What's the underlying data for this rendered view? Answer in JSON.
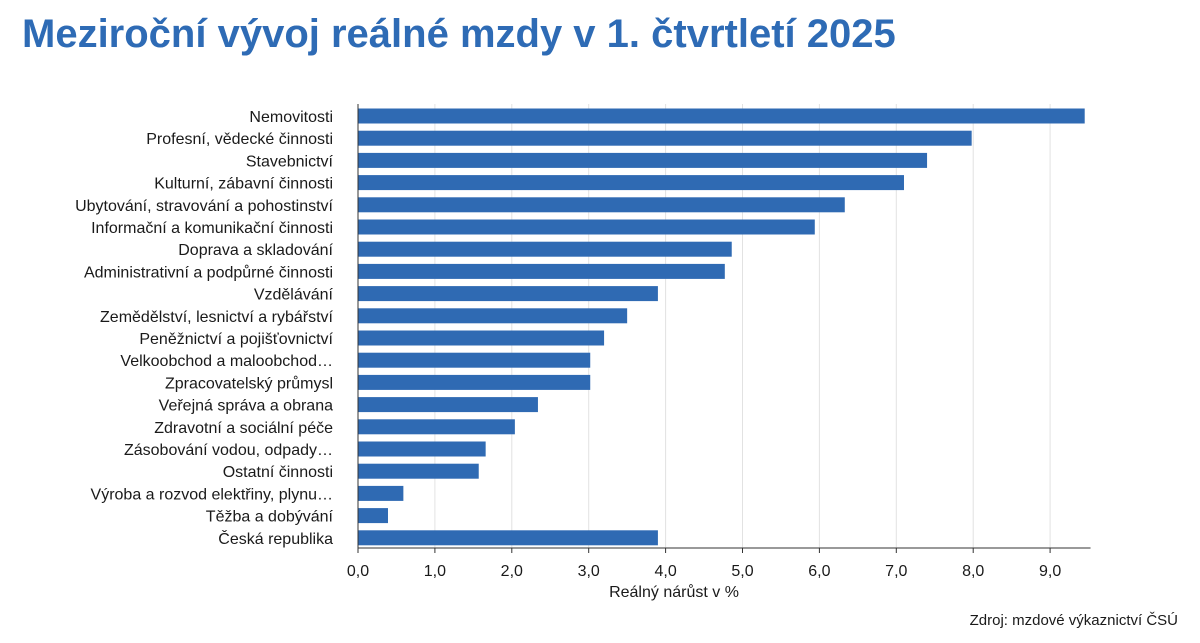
{
  "title": "Meziroční vývoj reálné mzdy v 1. čtvrtletí 2025",
  "source": "Zdroj: mzdové výkaznictví ČSÚ",
  "colors": {
    "bar": "#2f6ab3",
    "title": "#2e6bb5",
    "grid": "#e2e2e2",
    "axis": "#333333"
  },
  "chart_data": {
    "type": "bar",
    "orientation": "horizontal",
    "title": "Meziroční vývoj reálné mzdy v 1. čtvrtletí 2025",
    "xlabel": "Reálný nárůst v %",
    "ylabel": "",
    "xlim": [
      0,
      9.5
    ],
    "grid": true,
    "categories": [
      "Nemovitosti",
      "Profesní, vědecké činnosti",
      "Stavebnictví",
      "Kulturní, zábavní činnosti",
      "Ubytování, stravování a pohostinství",
      "Informační a komunikační činnosti",
      "Doprava a skladování",
      "Administrativní a podpůrné činnosti",
      "Vzdělávání",
      "Zemědělství, lesnictví a rybářství",
      "Peněžnictví a pojišťovnictví",
      "Velkoobchod a maloobchod…",
      "Zpracovatelský průmysl",
      "Veřejná správa a obrana",
      "Zdravotní a sociální péče",
      "Zásobování vodou, odpady…",
      "Ostatní činnosti",
      "Výroba a rozvod elektřiny, plynu…",
      "Těžba a dobývání",
      "Česká republika"
    ],
    "values": [
      9.45,
      7.98,
      7.4,
      7.1,
      6.33,
      5.94,
      4.86,
      4.77,
      3.9,
      3.5,
      3.2,
      3.02,
      3.02,
      2.34,
      2.04,
      1.66,
      1.57,
      0.59,
      0.39,
      3.9
    ],
    "ticks": [
      0,
      1,
      2,
      3,
      4,
      5,
      6,
      7,
      8,
      9
    ],
    "tick_labels": [
      "0,0",
      "1,0",
      "2,0",
      "3,0",
      "4,0",
      "5,0",
      "6,0",
      "7,0",
      "8,0",
      "9,0"
    ]
  }
}
